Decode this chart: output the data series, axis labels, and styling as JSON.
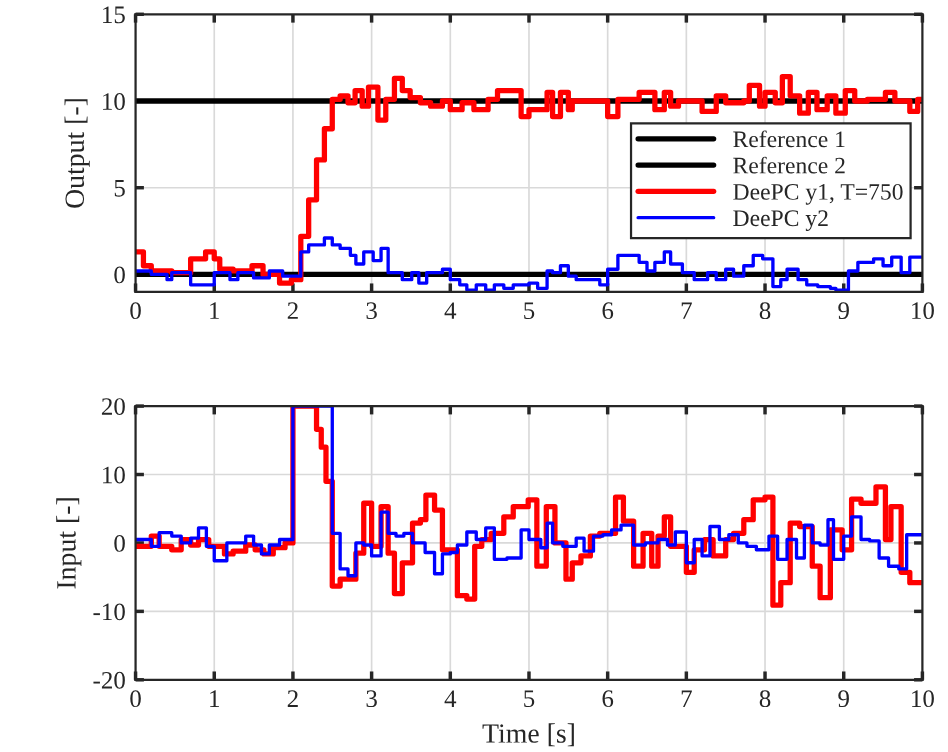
{
  "chart_data": [
    {
      "type": "step",
      "ylabel": "Output [-]",
      "xlim": [
        0,
        10
      ],
      "xticks": [
        0,
        1,
        2,
        3,
        4,
        5,
        6,
        7,
        8,
        9,
        10
      ],
      "ylim": [
        -1,
        15
      ],
      "yticks": [
        0,
        5,
        10,
        15
      ],
      "grid": true,
      "legend": "right",
      "line_style": "solid",
      "series": [
        {
          "name": "Reference 1",
          "type": "line",
          "color": "#000000",
          "x": [
            0,
            10
          ],
          "values": [
            10,
            10
          ]
        },
        {
          "name": "Reference 2",
          "type": "line",
          "color": "#000000",
          "x": [
            0,
            10
          ],
          "values": [
            0,
            0
          ]
        },
        {
          "name": "DeePC y1, T=750",
          "color": "#ff0000",
          "x": [
            0,
            0.1,
            0.2,
            0.46,
            0.7,
            0.89,
            1.0,
            1.07,
            1.24,
            1.48,
            1.62,
            1.83,
            1.98,
            2.1,
            2.2,
            2.3,
            2.4,
            2.5,
            2.6,
            2.7,
            2.79,
            2.88,
            2.96,
            3.08,
            3.18,
            3.29,
            3.39,
            3.49,
            3.62,
            3.75,
            3.9,
            4.0,
            4.15,
            4.3,
            4.48,
            4.6,
            4.9,
            5.0,
            5.16,
            5.23,
            5.3,
            5.4,
            5.5,
            5.55,
            6.0,
            6.13,
            6.4,
            6.6,
            6.72,
            6.8,
            6.9,
            7.2,
            7.38,
            7.5,
            7.73,
            7.8,
            7.93,
            8.0,
            8.13,
            8.22,
            8.32,
            8.44,
            8.55,
            8.66,
            8.79,
            8.9,
            9.02,
            9.14,
            9.3,
            9.53,
            9.65,
            9.84,
            9.94,
            10
          ],
          "values": [
            1.3,
            0.5,
            0.2,
            0.1,
            0.9,
            1.3,
            0.9,
            0.3,
            0.2,
            0.5,
            0,
            -0.5,
            -0.3,
            2.2,
            4.3,
            6.6,
            8.4,
            10.1,
            10.3,
            9.9,
            10.6,
            9.7,
            10.8,
            8.9,
            10.1,
            11.3,
            10.6,
            10.2,
            9.9,
            9.7,
            10,
            9.5,
            9.9,
            9.5,
            10.1,
            10.6,
            9.1,
            9.5,
            9.5,
            10.5,
            9.1,
            10.5,
            9.5,
            10,
            9.1,
            10.1,
            10.5,
            9.5,
            10.5,
            9.7,
            10,
            9.4,
            10.3,
            9.9,
            10,
            10.9,
            9.7,
            10.5,
            9.9,
            11.4,
            10.3,
            9.3,
            10.5,
            9.5,
            10.3,
            9.3,
            10.6,
            10,
            10.1,
            10.5,
            10,
            9.4,
            10.1,
            10.1
          ]
        },
        {
          "name": "DeePC y2",
          "color": "#0000ff",
          "x": [
            0,
            0.2,
            0.4,
            0.46,
            0.7,
            1.0,
            1.2,
            1.3,
            1.5,
            1.7,
            1.87,
            2.1,
            2.2,
            2.4,
            2.5,
            2.6,
            2.73,
            2.8,
            2.9,
            3.02,
            3.12,
            3.21,
            3.39,
            3.51,
            3.6,
            3.7,
            3.9,
            4.0,
            4.12,
            4.21,
            4.33,
            4.45,
            4.56,
            4.68,
            4.8,
            5.0,
            5.11,
            5.23,
            5.3,
            5.4,
            5.5,
            5.6,
            5.9,
            6.0,
            6.13,
            6.4,
            6.5,
            6.6,
            6.72,
            6.8,
            6.95,
            7.1,
            7.27,
            7.38,
            7.5,
            7.6,
            7.73,
            7.85,
            7.97,
            8.1,
            8.2,
            8.28,
            8.42,
            8.53,
            8.67,
            8.83,
            8.9,
            9.06,
            9.18,
            9.38,
            9.5,
            9.61,
            9.73,
            9.84,
            10
          ],
          "values": [
            0.2,
            0,
            -0.3,
            0.1,
            -0.6,
            0.1,
            -0.3,
            0.1,
            -0.2,
            0.2,
            -0.1,
            1.3,
            1.7,
            2.1,
            1.7,
            1.5,
            1.1,
            0.6,
            1.3,
            0.8,
            1.5,
            0.1,
            -0.3,
            0.1,
            -0.5,
            0.1,
            0.3,
            -0.3,
            -0.6,
            -0.9,
            -0.6,
            -0.9,
            -0.6,
            -0.8,
            -0.6,
            -0.5,
            -0.8,
            0.2,
            0.1,
            0.5,
            -0.1,
            -0.3,
            -0.6,
            0.3,
            1.1,
            0.7,
            0.2,
            0.7,
            1.3,
            0.6,
            0.1,
            -0.3,
            0.1,
            -0.3,
            0.3,
            -0.1,
            0.5,
            1.1,
            0.9,
            -0.7,
            -0.3,
            0.3,
            -0.3,
            -0.6,
            -0.7,
            -0.8,
            -0.9,
            0.2,
            0.7,
            0.9,
            0.5,
            1.0,
            0.1,
            1.0,
            1.0
          ]
        }
      ]
    },
    {
      "type": "step",
      "xlabel": "Time [s]",
      "ylabel": "Input [-]",
      "xlim": [
        0,
        10
      ],
      "xticks": [
        0,
        1,
        2,
        3,
        4,
        5,
        6,
        7,
        8,
        9,
        10
      ],
      "ylim": [
        -20,
        20
      ],
      "yticks": [
        -20,
        -10,
        0,
        10,
        20
      ],
      "grid": true,
      "line_style": "solid",
      "series": [
        {
          "color": "#ff0000",
          "x": [
            0,
            0.2,
            0.3,
            0.46,
            0.58,
            0.7,
            0.8,
            0.93,
            1.13,
            1.24,
            1.4,
            1.52,
            1.63,
            1.75,
            1.9,
            2.0,
            2.3,
            2.36,
            2.42,
            2.5,
            2.6,
            2.8,
            2.9,
            3.0,
            3.12,
            3.21,
            3.29,
            3.39,
            3.52,
            3.62,
            3.69,
            3.8,
            3.9,
            4.09,
            4.21,
            4.31,
            4.4,
            4.52,
            4.68,
            4.8,
            4.99,
            5.1,
            5.22,
            5.33,
            5.47,
            5.55,
            5.66,
            5.78,
            5.9,
            6.1,
            6.2,
            6.33,
            6.45,
            6.56,
            6.64,
            6.72,
            6.8,
            7.0,
            7.1,
            7.23,
            7.34,
            7.5,
            7.6,
            7.73,
            7.85,
            8.0,
            8.1,
            8.2,
            8.32,
            8.44,
            8.6,
            8.7,
            8.83,
            8.98,
            9.1,
            9.22,
            9.41,
            9.53,
            9.6,
            9.73,
            9.84,
            10
          ],
          "values": [
            -0.5,
            1,
            -0.5,
            -1,
            0.5,
            -0.3,
            0.5,
            -0.5,
            -1.6,
            -1.2,
            -0.3,
            -1,
            -1.6,
            -0.7,
            0,
            20,
            16.6,
            14,
            9,
            -6.3,
            -5.3,
            -1.5,
            5.8,
            -0.5,
            5.3,
            -1.5,
            -7.4,
            -2.9,
            2.9,
            3.4,
            7,
            4.8,
            -1,
            -7.7,
            -8.2,
            -0.5,
            0.5,
            1.4,
            3.8,
            5.3,
            6.3,
            -3.4,
            5.3,
            0,
            -5.3,
            -2.9,
            -1.9,
            1,
            1.4,
            6.7,
            3.2,
            -3.4,
            1.4,
            -3.4,
            1,
            3.8,
            -0.5,
            -4.3,
            -1,
            0.5,
            -1.9,
            0.5,
            1.4,
            3.4,
            6.3,
            6.7,
            -9.1,
            -5.8,
            2.9,
            2.4,
            -3.4,
            -8,
            1.9,
            -1,
            6.4,
            5.8,
            8.2,
            0.5,
            5.3,
            -4.3,
            -5.8,
            -5.8
          ]
        },
        {
          "color": "#0000ff",
          "x": [
            0,
            0.2,
            0.3,
            0.46,
            0.58,
            0.7,
            0.8,
            0.9,
            1.0,
            1.16,
            1.4,
            1.5,
            1.6,
            1.7,
            1.83,
            2.0,
            2.5,
            2.6,
            2.7,
            2.8,
            2.9,
            3.0,
            3.12,
            3.21,
            3.31,
            3.41,
            3.52,
            3.68,
            3.8,
            3.9,
            4.0,
            4.09,
            4.21,
            4.33,
            4.45,
            4.56,
            4.72,
            4.9,
            5.0,
            5.15,
            5.23,
            5.3,
            5.43,
            5.6,
            5.7,
            5.82,
            5.94,
            6.05,
            6.17,
            6.33,
            6.48,
            6.64,
            6.76,
            6.86,
            7.0,
            7.1,
            7.2,
            7.3,
            7.42,
            7.54,
            7.66,
            7.77,
            7.89,
            8.05,
            8.16,
            8.28,
            8.4,
            8.5,
            8.6,
            8.7,
            8.8,
            8.87,
            9.0,
            9.1,
            9.22,
            9.33,
            9.45,
            9.57,
            9.7,
            9.8,
            9.94,
            10
          ],
          "values": [
            0.5,
            -0.5,
            1.5,
            1,
            0,
            0.7,
            2.2,
            -0.5,
            -2.6,
            0,
            1,
            -0.3,
            -1.6,
            -0.3,
            0.5,
            20,
            1.4,
            -3.8,
            -4.8,
            0,
            -0.3,
            -1.9,
            4.5,
            1.4,
            1,
            1.4,
            0,
            -1.4,
            -4.5,
            -1.6,
            -1.4,
            -0.3,
            1.6,
            0.5,
            2.2,
            -2.4,
            -2.2,
            1.9,
            0.5,
            -0.7,
            2.9,
            0,
            -0.5,
            0.7,
            -1.2,
            1,
            1.2,
            1.9,
            2.6,
            -0.3,
            0,
            0.5,
            -0.3,
            1.6,
            -2.9,
            0.5,
            -1.9,
            2.4,
            0.5,
            1.2,
            0,
            -0.5,
            -1,
            1,
            -2.4,
            0.5,
            -2.2,
            2.6,
            0,
            -0.3,
            3.4,
            -2.4,
            1,
            3.8,
            0.5,
            0.3,
            -2.2,
            -3.4,
            -3.8,
            1.2,
            1.2,
            1.2
          ]
        }
      ]
    }
  ]
}
